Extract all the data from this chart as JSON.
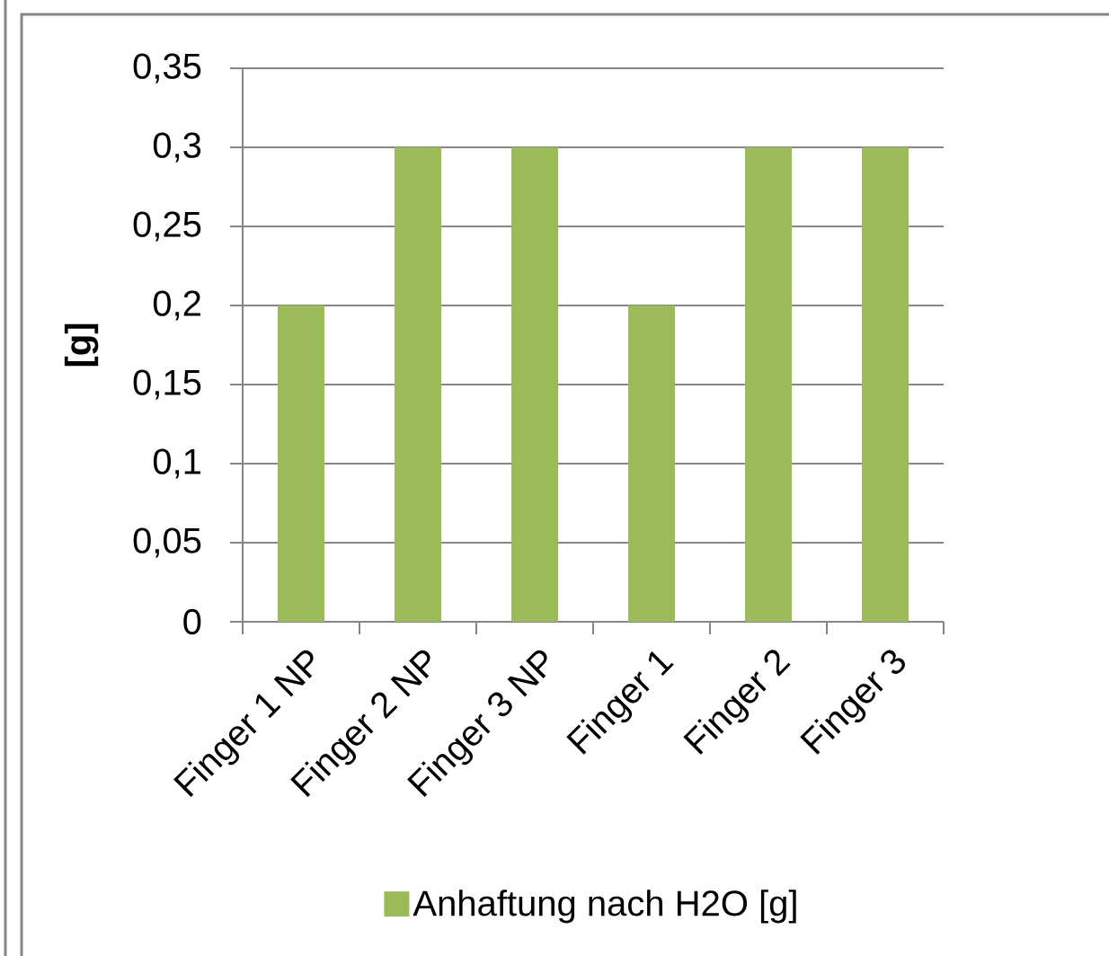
{
  "chart_data": {
    "type": "bar",
    "ylabel": "[g]",
    "categories": [
      "Finger 1 NP",
      "Finger 2 NP",
      "Finger 3 NP",
      "Finger 1",
      "Finger 2",
      "Finger 3"
    ],
    "series": [
      {
        "name": "Anhaftung nach H2O [g]",
        "color": "#9bbb59",
        "values": [
          0.2,
          0.3,
          0.3,
          0.2,
          0.3,
          0.3
        ]
      }
    ],
    "ylim": [
      0,
      0.35
    ],
    "yticks": [
      0,
      {
        "value": 0.05,
        "label": "0,05"
      },
      {
        "value": 0.1,
        "label": "0,1"
      },
      {
        "value": 0.15,
        "label": "0,15"
      },
      {
        "value": 0.2,
        "label": "0,2"
      },
      {
        "value": 0.25,
        "label": "0,25"
      },
      {
        "value": 0.3,
        "label": "0,3"
      },
      {
        "value": 0.35,
        "label": "0,35"
      }
    ],
    "grid": "y",
    "legend": "bottom"
  }
}
